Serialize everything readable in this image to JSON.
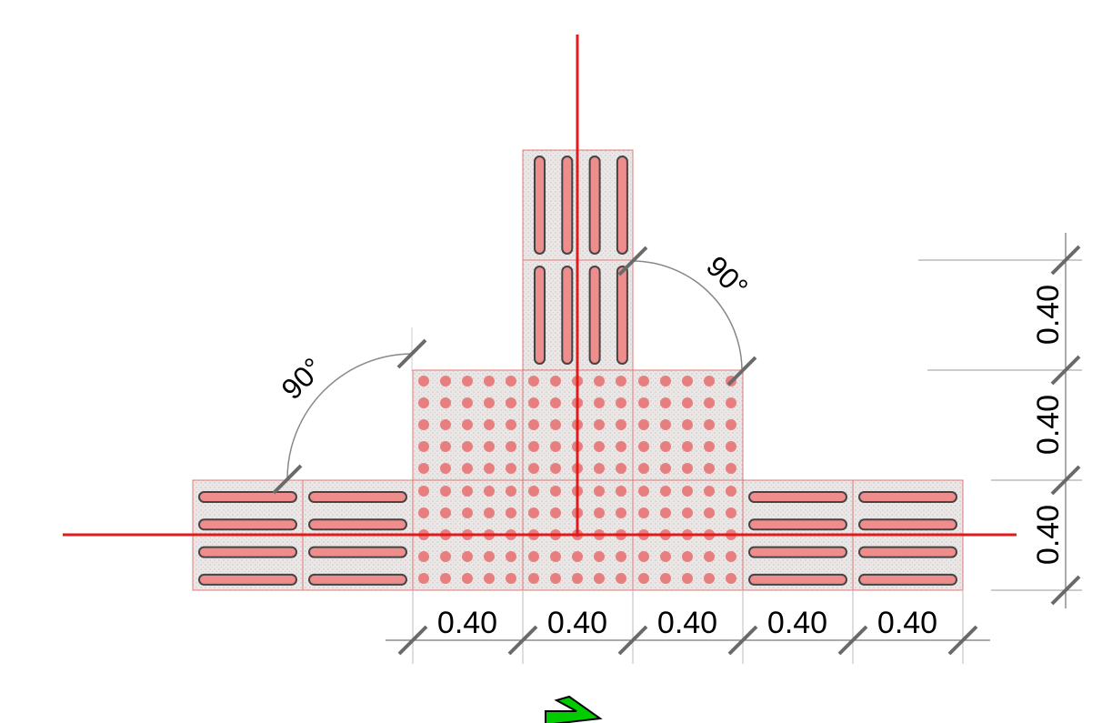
{
  "colors": {
    "tile_fill": "#e9e5e5",
    "tile_stroke": "#e07a7a",
    "dot": "#e87f7f",
    "bar_fill": "#ef8d8d",
    "bar_outline": "#444444",
    "axis": "#e31a1a",
    "dimension_line": "#555555",
    "tick": "#6a6a6a",
    "arc": "#888888",
    "arrow": "#00cc00"
  },
  "tile_size_m": 0.4,
  "layout": {
    "stem_tiles": [
      {
        "type": "guidance",
        "orientation": "vertical",
        "col": 3,
        "row": 0
      },
      {
        "type": "guidance",
        "orientation": "vertical",
        "col": 3,
        "row": 1
      }
    ],
    "warning_tiles": [
      {
        "type": "warning",
        "col": 2,
        "row": 2
      },
      {
        "type": "warning",
        "col": 3,
        "row": 2
      },
      {
        "type": "warning",
        "col": 4,
        "row": 2
      },
      {
        "type": "warning",
        "col": 2,
        "row": 3
      },
      {
        "type": "warning",
        "col": 3,
        "row": 3
      },
      {
        "type": "warning",
        "col": 4,
        "row": 3
      }
    ],
    "arm_tiles": [
      {
        "type": "guidance",
        "orientation": "horizontal",
        "col": 0,
        "row": 3
      },
      {
        "type": "guidance",
        "orientation": "horizontal",
        "col": 1,
        "row": 3
      },
      {
        "type": "guidance",
        "orientation": "horizontal",
        "col": 5,
        "row": 3
      },
      {
        "type": "guidance",
        "orientation": "horizontal",
        "col": 6,
        "row": 3
      }
    ]
  },
  "dimensions": {
    "horizontal": [
      "0.40",
      "0.40",
      "0.40",
      "0.40",
      "0.40"
    ],
    "vertical": [
      "0.40",
      "0.40",
      "0.40"
    ]
  },
  "angles": [
    {
      "label": "90°",
      "position": "left"
    },
    {
      "label": "90°",
      "position": "right"
    }
  ],
  "direction_arrow": {
    "icon": "arrow-right-icon",
    "color": "#00cc00"
  }
}
